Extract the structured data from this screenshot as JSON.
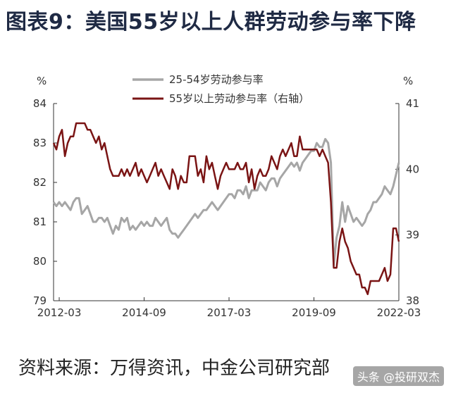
{
  "title": "图表9：美国55岁以上人群劳动参与率下降",
  "source": "资料来源：万得资讯，中金公司研究部",
  "watermark": "头条 @投研双杰",
  "colors": {
    "series1": "#a6a6a6",
    "series2": "#7a1414",
    "title": "#1f2a44"
  },
  "chart_data": {
    "type": "line",
    "left_unit": "%",
    "right_unit": "%",
    "x_tick_labels": [
      "2012-03",
      "2014-09",
      "2017-03",
      "2019-09",
      "2022-03"
    ],
    "x_range": [
      "2012-01",
      "2022-03"
    ],
    "ylim_left": [
      79,
      84
    ],
    "ylim_right": [
      38,
      41
    ],
    "y_ticks_left": [
      79,
      80,
      81,
      82,
      83,
      84
    ],
    "y_ticks_right": [
      38,
      39,
      40,
      41
    ],
    "legend_position": "top-center",
    "grid": false,
    "series": [
      {
        "name": "25-54岁劳动参与率",
        "axis": "left",
        "points": [
          [
            "2012-01",
            81.5
          ],
          [
            "2012-02",
            81.4
          ],
          [
            "2012-03",
            81.5
          ],
          [
            "2012-04",
            81.4
          ],
          [
            "2012-05",
            81.5
          ],
          [
            "2012-06",
            81.4
          ],
          [
            "2012-07",
            81.3
          ],
          [
            "2012-08",
            81.5
          ],
          [
            "2012-09",
            81.6
          ],
          [
            "2012-10",
            81.6
          ],
          [
            "2012-11",
            81.2
          ],
          [
            "2012-12",
            81.3
          ],
          [
            "2013-01",
            81.4
          ],
          [
            "2013-02",
            81.2
          ],
          [
            "2013-03",
            81.0
          ],
          [
            "2013-04",
            81.0
          ],
          [
            "2013-05",
            81.1
          ],
          [
            "2013-06",
            81.1
          ],
          [
            "2013-07",
            81.0
          ],
          [
            "2013-08",
            81.1
          ],
          [
            "2013-09",
            80.9
          ],
          [
            "2013-10",
            80.7
          ],
          [
            "2013-11",
            80.9
          ],
          [
            "2013-12",
            80.8
          ],
          [
            "2014-01",
            81.1
          ],
          [
            "2014-02",
            81.0
          ],
          [
            "2014-03",
            81.1
          ],
          [
            "2014-04",
            80.8
          ],
          [
            "2014-05",
            80.9
          ],
          [
            "2014-06",
            80.8
          ],
          [
            "2014-07",
            80.9
          ],
          [
            "2014-08",
            81.0
          ],
          [
            "2014-09",
            80.9
          ],
          [
            "2014-10",
            81.0
          ],
          [
            "2014-11",
            80.9
          ],
          [
            "2014-12",
            80.9
          ],
          [
            "2015-01",
            81.1
          ],
          [
            "2015-02",
            81.0
          ],
          [
            "2015-03",
            80.9
          ],
          [
            "2015-04",
            81.0
          ],
          [
            "2015-05",
            81.1
          ],
          [
            "2015-06",
            80.8
          ],
          [
            "2015-07",
            80.7
          ],
          [
            "2015-08",
            80.7
          ],
          [
            "2015-09",
            80.6
          ],
          [
            "2015-10",
            80.7
          ],
          [
            "2015-11",
            80.8
          ],
          [
            "2015-12",
            80.9
          ],
          [
            "2016-01",
            81.0
          ],
          [
            "2016-02",
            81.1
          ],
          [
            "2016-03",
            81.2
          ],
          [
            "2016-04",
            81.1
          ],
          [
            "2016-05",
            81.2
          ],
          [
            "2016-06",
            81.3
          ],
          [
            "2016-07",
            81.3
          ],
          [
            "2016-08",
            81.4
          ],
          [
            "2016-09",
            81.5
          ],
          [
            "2016-10",
            81.4
          ],
          [
            "2016-11",
            81.3
          ],
          [
            "2016-12",
            81.4
          ],
          [
            "2017-01",
            81.5
          ],
          [
            "2017-02",
            81.6
          ],
          [
            "2017-03",
            81.7
          ],
          [
            "2017-04",
            81.7
          ],
          [
            "2017-05",
            81.6
          ],
          [
            "2017-06",
            81.8
          ],
          [
            "2017-07",
            81.8
          ],
          [
            "2017-08",
            81.7
          ],
          [
            "2017-09",
            81.9
          ],
          [
            "2017-10",
            81.6
          ],
          [
            "2017-11",
            81.8
          ],
          [
            "2017-12",
            81.8
          ],
          [
            "2018-01",
            81.8
          ],
          [
            "2018-02",
            82.0
          ],
          [
            "2018-03",
            81.9
          ],
          [
            "2018-04",
            81.8
          ],
          [
            "2018-05",
            82.0
          ],
          [
            "2018-06",
            82.1
          ],
          [
            "2018-07",
            82.1
          ],
          [
            "2018-08",
            81.9
          ],
          [
            "2018-09",
            82.1
          ],
          [
            "2018-10",
            82.2
          ],
          [
            "2018-11",
            82.3
          ],
          [
            "2018-12",
            82.4
          ],
          [
            "2019-01",
            82.5
          ],
          [
            "2019-02",
            82.4
          ],
          [
            "2019-03",
            82.5
          ],
          [
            "2019-04",
            82.3
          ],
          [
            "2019-05",
            82.5
          ],
          [
            "2019-06",
            82.6
          ],
          [
            "2019-07",
            82.7
          ],
          [
            "2019-08",
            82.8
          ],
          [
            "2019-09",
            82.8
          ],
          [
            "2019-10",
            83.0
          ],
          [
            "2019-11",
            82.9
          ],
          [
            "2019-12",
            82.9
          ],
          [
            "2020-01",
            83.1
          ],
          [
            "2020-02",
            83.0
          ],
          [
            "2020-03",
            82.5
          ],
          [
            "2020-04",
            79.9
          ],
          [
            "2020-05",
            80.6
          ],
          [
            "2020-06",
            80.9
          ],
          [
            "2020-07",
            81.5
          ],
          [
            "2020-08",
            81.0
          ],
          [
            "2020-09",
            81.4
          ],
          [
            "2020-10",
            81.2
          ],
          [
            "2020-11",
            81.0
          ],
          [
            "2020-12",
            81.1
          ],
          [
            "2021-01",
            81.0
          ],
          [
            "2021-02",
            80.9
          ],
          [
            "2021-03",
            81.0
          ],
          [
            "2021-04",
            81.2
          ],
          [
            "2021-05",
            81.3
          ],
          [
            "2021-06",
            81.5
          ],
          [
            "2021-07",
            81.5
          ],
          [
            "2021-08",
            81.6
          ],
          [
            "2021-09",
            81.7
          ],
          [
            "2021-10",
            81.9
          ],
          [
            "2021-11",
            81.8
          ],
          [
            "2021-12",
            81.7
          ],
          [
            "2022-01",
            81.9
          ],
          [
            "2022-02",
            82.2
          ],
          [
            "2022-03",
            82.5
          ]
        ]
      },
      {
        "name": "55岁以上劳动参与率（右轴）",
        "axis": "right",
        "points": [
          [
            "2012-01",
            40.4
          ],
          [
            "2012-02",
            40.3
          ],
          [
            "2012-03",
            40.5
          ],
          [
            "2012-04",
            40.6
          ],
          [
            "2012-05",
            40.2
          ],
          [
            "2012-06",
            40.4
          ],
          [
            "2012-07",
            40.5
          ],
          [
            "2012-08",
            40.5
          ],
          [
            "2012-09",
            40.7
          ],
          [
            "2012-10",
            40.7
          ],
          [
            "2012-11",
            40.7
          ],
          [
            "2012-12",
            40.7
          ],
          [
            "2013-01",
            40.6
          ],
          [
            "2013-02",
            40.6
          ],
          [
            "2013-03",
            40.5
          ],
          [
            "2013-04",
            40.4
          ],
          [
            "2013-05",
            40.5
          ],
          [
            "2013-06",
            40.3
          ],
          [
            "2013-07",
            40.4
          ],
          [
            "2013-08",
            40.2
          ],
          [
            "2013-09",
            40.0
          ],
          [
            "2013-10",
            39.9
          ],
          [
            "2013-11",
            39.9
          ],
          [
            "2013-12",
            39.9
          ],
          [
            "2014-01",
            40.0
          ],
          [
            "2014-02",
            39.9
          ],
          [
            "2014-03",
            40.0
          ],
          [
            "2014-04",
            39.9
          ],
          [
            "2014-05",
            40.0
          ],
          [
            "2014-06",
            40.1
          ],
          [
            "2014-07",
            39.9
          ],
          [
            "2014-08",
            40.0
          ],
          [
            "2014-09",
            39.9
          ],
          [
            "2014-10",
            39.8
          ],
          [
            "2014-11",
            39.9
          ],
          [
            "2014-12",
            40.0
          ],
          [
            "2015-01",
            40.1
          ],
          [
            "2015-02",
            39.9
          ],
          [
            "2015-03",
            40.0
          ],
          [
            "2015-04",
            39.9
          ],
          [
            "2015-05",
            39.8
          ],
          [
            "2015-06",
            39.7
          ],
          [
            "2015-07",
            40.0
          ],
          [
            "2015-08",
            39.9
          ],
          [
            "2015-09",
            39.7
          ],
          [
            "2015-10",
            39.9
          ],
          [
            "2015-11",
            39.8
          ],
          [
            "2015-12",
            39.8
          ],
          [
            "2016-01",
            40.2
          ],
          [
            "2016-02",
            40.2
          ],
          [
            "2016-03",
            40.2
          ],
          [
            "2016-04",
            39.9
          ],
          [
            "2016-05",
            40.0
          ],
          [
            "2016-06",
            39.8
          ],
          [
            "2016-07",
            40.2
          ],
          [
            "2016-08",
            40.0
          ],
          [
            "2016-09",
            40.1
          ],
          [
            "2016-10",
            39.9
          ],
          [
            "2016-11",
            39.7
          ],
          [
            "2016-12",
            39.9
          ],
          [
            "2017-01",
            40.0
          ],
          [
            "2017-02",
            40.1
          ],
          [
            "2017-03",
            40.0
          ],
          [
            "2017-04",
            40.0
          ],
          [
            "2017-05",
            40.0
          ],
          [
            "2017-06",
            40.1
          ],
          [
            "2017-07",
            40.0
          ],
          [
            "2017-08",
            40.0
          ],
          [
            "2017-09",
            40.1
          ],
          [
            "2017-10",
            39.8
          ],
          [
            "2017-11",
            40.0
          ],
          [
            "2017-12",
            39.7
          ],
          [
            "2018-01",
            39.9
          ],
          [
            "2018-02",
            40.0
          ],
          [
            "2018-03",
            39.9
          ],
          [
            "2018-04",
            39.9
          ],
          [
            "2018-05",
            40.0
          ],
          [
            "2018-06",
            40.2
          ],
          [
            "2018-07",
            40.1
          ],
          [
            "2018-08",
            40.0
          ],
          [
            "2018-09",
            40.2
          ],
          [
            "2018-10",
            40.3
          ],
          [
            "2018-11",
            40.2
          ],
          [
            "2018-12",
            40.3
          ],
          [
            "2019-01",
            40.4
          ],
          [
            "2019-02",
            40.2
          ],
          [
            "2019-03",
            40.2
          ],
          [
            "2019-04",
            40.5
          ],
          [
            "2019-05",
            40.3
          ],
          [
            "2019-06",
            40.3
          ],
          [
            "2019-07",
            40.3
          ],
          [
            "2019-08",
            40.3
          ],
          [
            "2019-09",
            40.3
          ],
          [
            "2019-10",
            40.3
          ],
          [
            "2019-11",
            40.2
          ],
          [
            "2019-12",
            40.3
          ],
          [
            "2020-01",
            40.2
          ],
          [
            "2020-02",
            40.1
          ],
          [
            "2020-03",
            39.5
          ],
          [
            "2020-04",
            38.5
          ],
          [
            "2020-05",
            38.5
          ],
          [
            "2020-06",
            38.9
          ],
          [
            "2020-07",
            39.1
          ],
          [
            "2020-08",
            38.9
          ],
          [
            "2020-09",
            38.8
          ],
          [
            "2020-10",
            38.6
          ],
          [
            "2020-11",
            38.5
          ],
          [
            "2020-12",
            38.4
          ],
          [
            "2021-01",
            38.4
          ],
          [
            "2021-02",
            38.2
          ],
          [
            "2021-03",
            38.2
          ],
          [
            "2021-04",
            38.1
          ],
          [
            "2021-05",
            38.3
          ],
          [
            "2021-06",
            38.3
          ],
          [
            "2021-07",
            38.3
          ],
          [
            "2021-08",
            38.3
          ],
          [
            "2021-09",
            38.4
          ],
          [
            "2021-10",
            38.5
          ],
          [
            "2021-11",
            38.3
          ],
          [
            "2021-12",
            38.4
          ],
          [
            "2022-01",
            39.1
          ],
          [
            "2022-02",
            39.1
          ],
          [
            "2022-03",
            38.9
          ]
        ]
      }
    ]
  }
}
